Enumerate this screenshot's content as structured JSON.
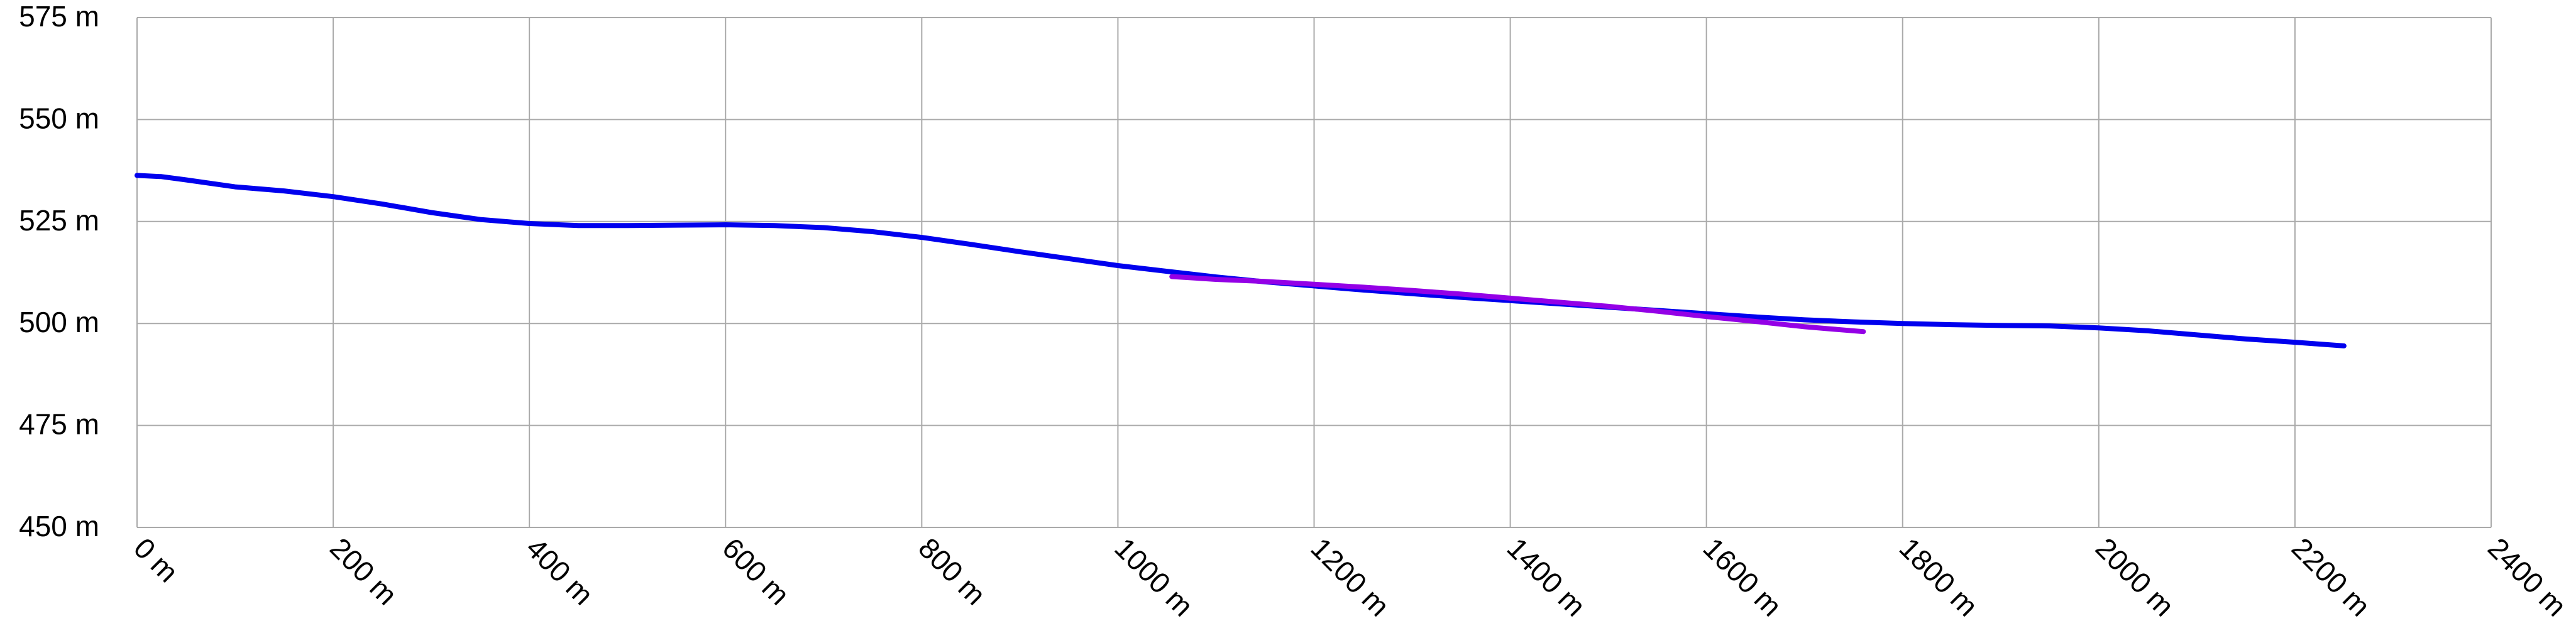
{
  "chart_data": {
    "type": "line",
    "title": "",
    "xlabel": "",
    "ylabel": "",
    "xlim": [
      0,
      2400
    ],
    "ylim": [
      450,
      575
    ],
    "x_ticks": [
      0,
      200,
      400,
      600,
      800,
      1000,
      1200,
      1400,
      1600,
      1800,
      2000,
      2200,
      2400
    ],
    "y_ticks": [
      450,
      475,
      500,
      525,
      550,
      575
    ],
    "x_tick_labels": [
      "0 m",
      "200 m",
      "400 m",
      "600 m",
      "800 m",
      "1000 m",
      "1200 m",
      "1400 m",
      "1600 m",
      "1800 m",
      "2000 m",
      "2200 m",
      "2400 m"
    ],
    "y_tick_labels": [
      "450 m",
      "475 m",
      "500 m",
      "525 m",
      "550 m",
      "575 m"
    ],
    "grid": true,
    "series": [
      {
        "color": "#0000ee",
        "x": [
          0,
          25,
          50,
          100,
          150,
          200,
          250,
          300,
          350,
          400,
          450,
          500,
          550,
          600,
          650,
          700,
          750,
          800,
          850,
          900,
          950,
          1000,
          1050,
          1100,
          1150,
          1200,
          1250,
          1300,
          1350,
          1400,
          1450,
          1500,
          1550,
          1600,
          1650,
          1700,
          1750,
          1800,
          1850,
          1900,
          1950,
          2000,
          2050,
          2100,
          2150,
          2200,
          2250
        ],
        "y": [
          536.3,
          536,
          535.2,
          533.5,
          532.5,
          531.1,
          529.3,
          527.2,
          525.5,
          524.5,
          524,
          524,
          524.1,
          524.2,
          524,
          523.5,
          522.5,
          521.1,
          519.4,
          517.6,
          515.9,
          514.2,
          512.8,
          511.4,
          510.2,
          509.2,
          508.2,
          507.3,
          506.4,
          505.6,
          504.8,
          504,
          503.2,
          502.4,
          501.6,
          500.9,
          500.4,
          500,
          499.7,
          499.5,
          499.4,
          498.9,
          498.2,
          497.2,
          496.2,
          495.4,
          494.5
        ]
      },
      {
        "color": "#9400e6",
        "x": [
          1055,
          1100,
          1150,
          1200,
          1250,
          1300,
          1350,
          1400,
          1450,
          1500,
          1550,
          1600,
          1650,
          1700,
          1760
        ],
        "y": [
          511.5,
          510.8,
          510.3,
          509.6,
          508.9,
          508.1,
          507.2,
          506.2,
          505.2,
          504.2,
          503.0,
          501.7,
          500.5,
          499.2,
          498
        ]
      }
    ]
  }
}
